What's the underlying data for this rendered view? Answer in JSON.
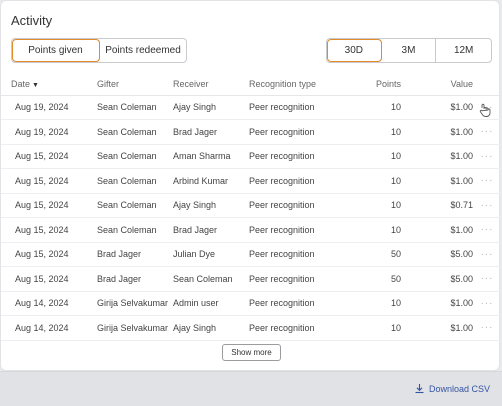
{
  "title": "Activity",
  "tabs": [
    {
      "label": "Points given",
      "active": true
    },
    {
      "label": "Points redeemed",
      "active": false
    }
  ],
  "ranges": [
    {
      "label": "30D",
      "active": true
    },
    {
      "label": "3M",
      "active": false
    },
    {
      "label": "12M",
      "active": false
    }
  ],
  "table": {
    "headers": {
      "date": "Date",
      "gifter": "Gifter",
      "receiver": "Receiver",
      "type": "Recognition type",
      "points": "Points",
      "value": "Value"
    },
    "rows": [
      {
        "date": "Aug 19, 2024",
        "gifter": "Sean Coleman",
        "receiver": "Ajay Singh",
        "type": "Peer recognition",
        "points": "10",
        "value": "$1.00"
      },
      {
        "date": "Aug 19, 2024",
        "gifter": "Sean Coleman",
        "receiver": "Brad Jager",
        "type": "Peer recognition",
        "points": "10",
        "value": "$1.00"
      },
      {
        "date": "Aug 15, 2024",
        "gifter": "Sean Coleman",
        "receiver": "Aman Sharma",
        "type": "Peer recognition",
        "points": "10",
        "value": "$1.00"
      },
      {
        "date": "Aug 15, 2024",
        "gifter": "Sean Coleman",
        "receiver": "Arbind Kumar",
        "type": "Peer recognition",
        "points": "10",
        "value": "$1.00"
      },
      {
        "date": "Aug 15, 2024",
        "gifter": "Sean Coleman",
        "receiver": "Ajay Singh",
        "type": "Peer recognition",
        "points": "10",
        "value": "$0.71"
      },
      {
        "date": "Aug 15, 2024",
        "gifter": "Sean Coleman",
        "receiver": "Brad Jager",
        "type": "Peer recognition",
        "points": "10",
        "value": "$1.00"
      },
      {
        "date": "Aug 15, 2024",
        "gifter": "Brad Jager",
        "receiver": "Julian Dye",
        "type": "Peer recognition",
        "points": "50",
        "value": "$5.00"
      },
      {
        "date": "Aug 15, 2024",
        "gifter": "Brad Jager",
        "receiver": "Sean Coleman",
        "type": "Peer recognition",
        "points": "50",
        "value": "$5.00"
      },
      {
        "date": "Aug 14, 2024",
        "gifter": "Girija Selvakumar",
        "receiver": "Admin user",
        "type": "Peer recognition",
        "points": "10",
        "value": "$1.00"
      },
      {
        "date": "Aug 14, 2024",
        "gifter": "Girija Selvakumar",
        "receiver": "Ajay Singh",
        "type": "Peer recognition",
        "points": "10",
        "value": "$1.00"
      }
    ],
    "row_action_icon": "more-horizontal-icon"
  },
  "show_more_label": "Show more",
  "download_label": "Download CSV",
  "colors": {
    "accent": "#e08a2c",
    "link": "#3554a5",
    "footer_bg": "#e1e2e5"
  }
}
